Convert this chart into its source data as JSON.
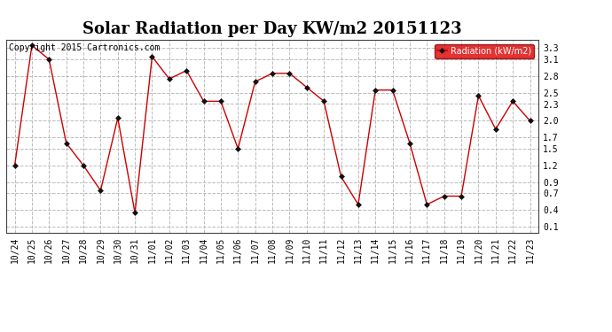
{
  "title": "Solar Radiation per Day KW/m2 20151123",
  "copyright": "Copyright 2015 Cartronics.com",
  "legend_label": "Radiation (kW/m2)",
  "dates": [
    "10/24",
    "10/25",
    "10/26",
    "10/27",
    "10/28",
    "10/29",
    "10/30",
    "10/31",
    "11/01",
    "11/02",
    "11/03",
    "11/04",
    "11/05",
    "11/06",
    "11/07",
    "11/08",
    "11/09",
    "11/10",
    "11/11",
    "11/12",
    "11/13",
    "11/14",
    "11/15",
    "11/16",
    "11/17",
    "11/18",
    "11/19",
    "11/20",
    "11/21",
    "11/22",
    "11/23"
  ],
  "values": [
    1.2,
    3.35,
    3.1,
    1.6,
    1.2,
    0.75,
    2.05,
    0.35,
    3.15,
    2.75,
    2.9,
    2.35,
    2.35,
    1.5,
    2.7,
    2.85,
    2.85,
    2.6,
    2.35,
    1.0,
    0.5,
    2.55,
    2.55,
    1.6,
    0.5,
    0.65,
    0.65,
    2.45,
    1.85,
    2.35,
    2.0
  ],
  "yticks": [
    0.1,
    0.4,
    0.7,
    0.9,
    1.2,
    1.5,
    1.7,
    2.0,
    2.3,
    2.5,
    2.8,
    3.1,
    3.3
  ],
  "ylim": [
    0.0,
    3.45
  ],
  "line_color": "#cc0000",
  "marker_color": "#111111",
  "bg_color": "#ffffff",
  "grid_color": "#bbbbbb",
  "title_fontsize": 13,
  "copyright_fontsize": 7,
  "tick_fontsize": 7,
  "legend_bg": "#dd0000",
  "legend_text_color": "#ffffff"
}
